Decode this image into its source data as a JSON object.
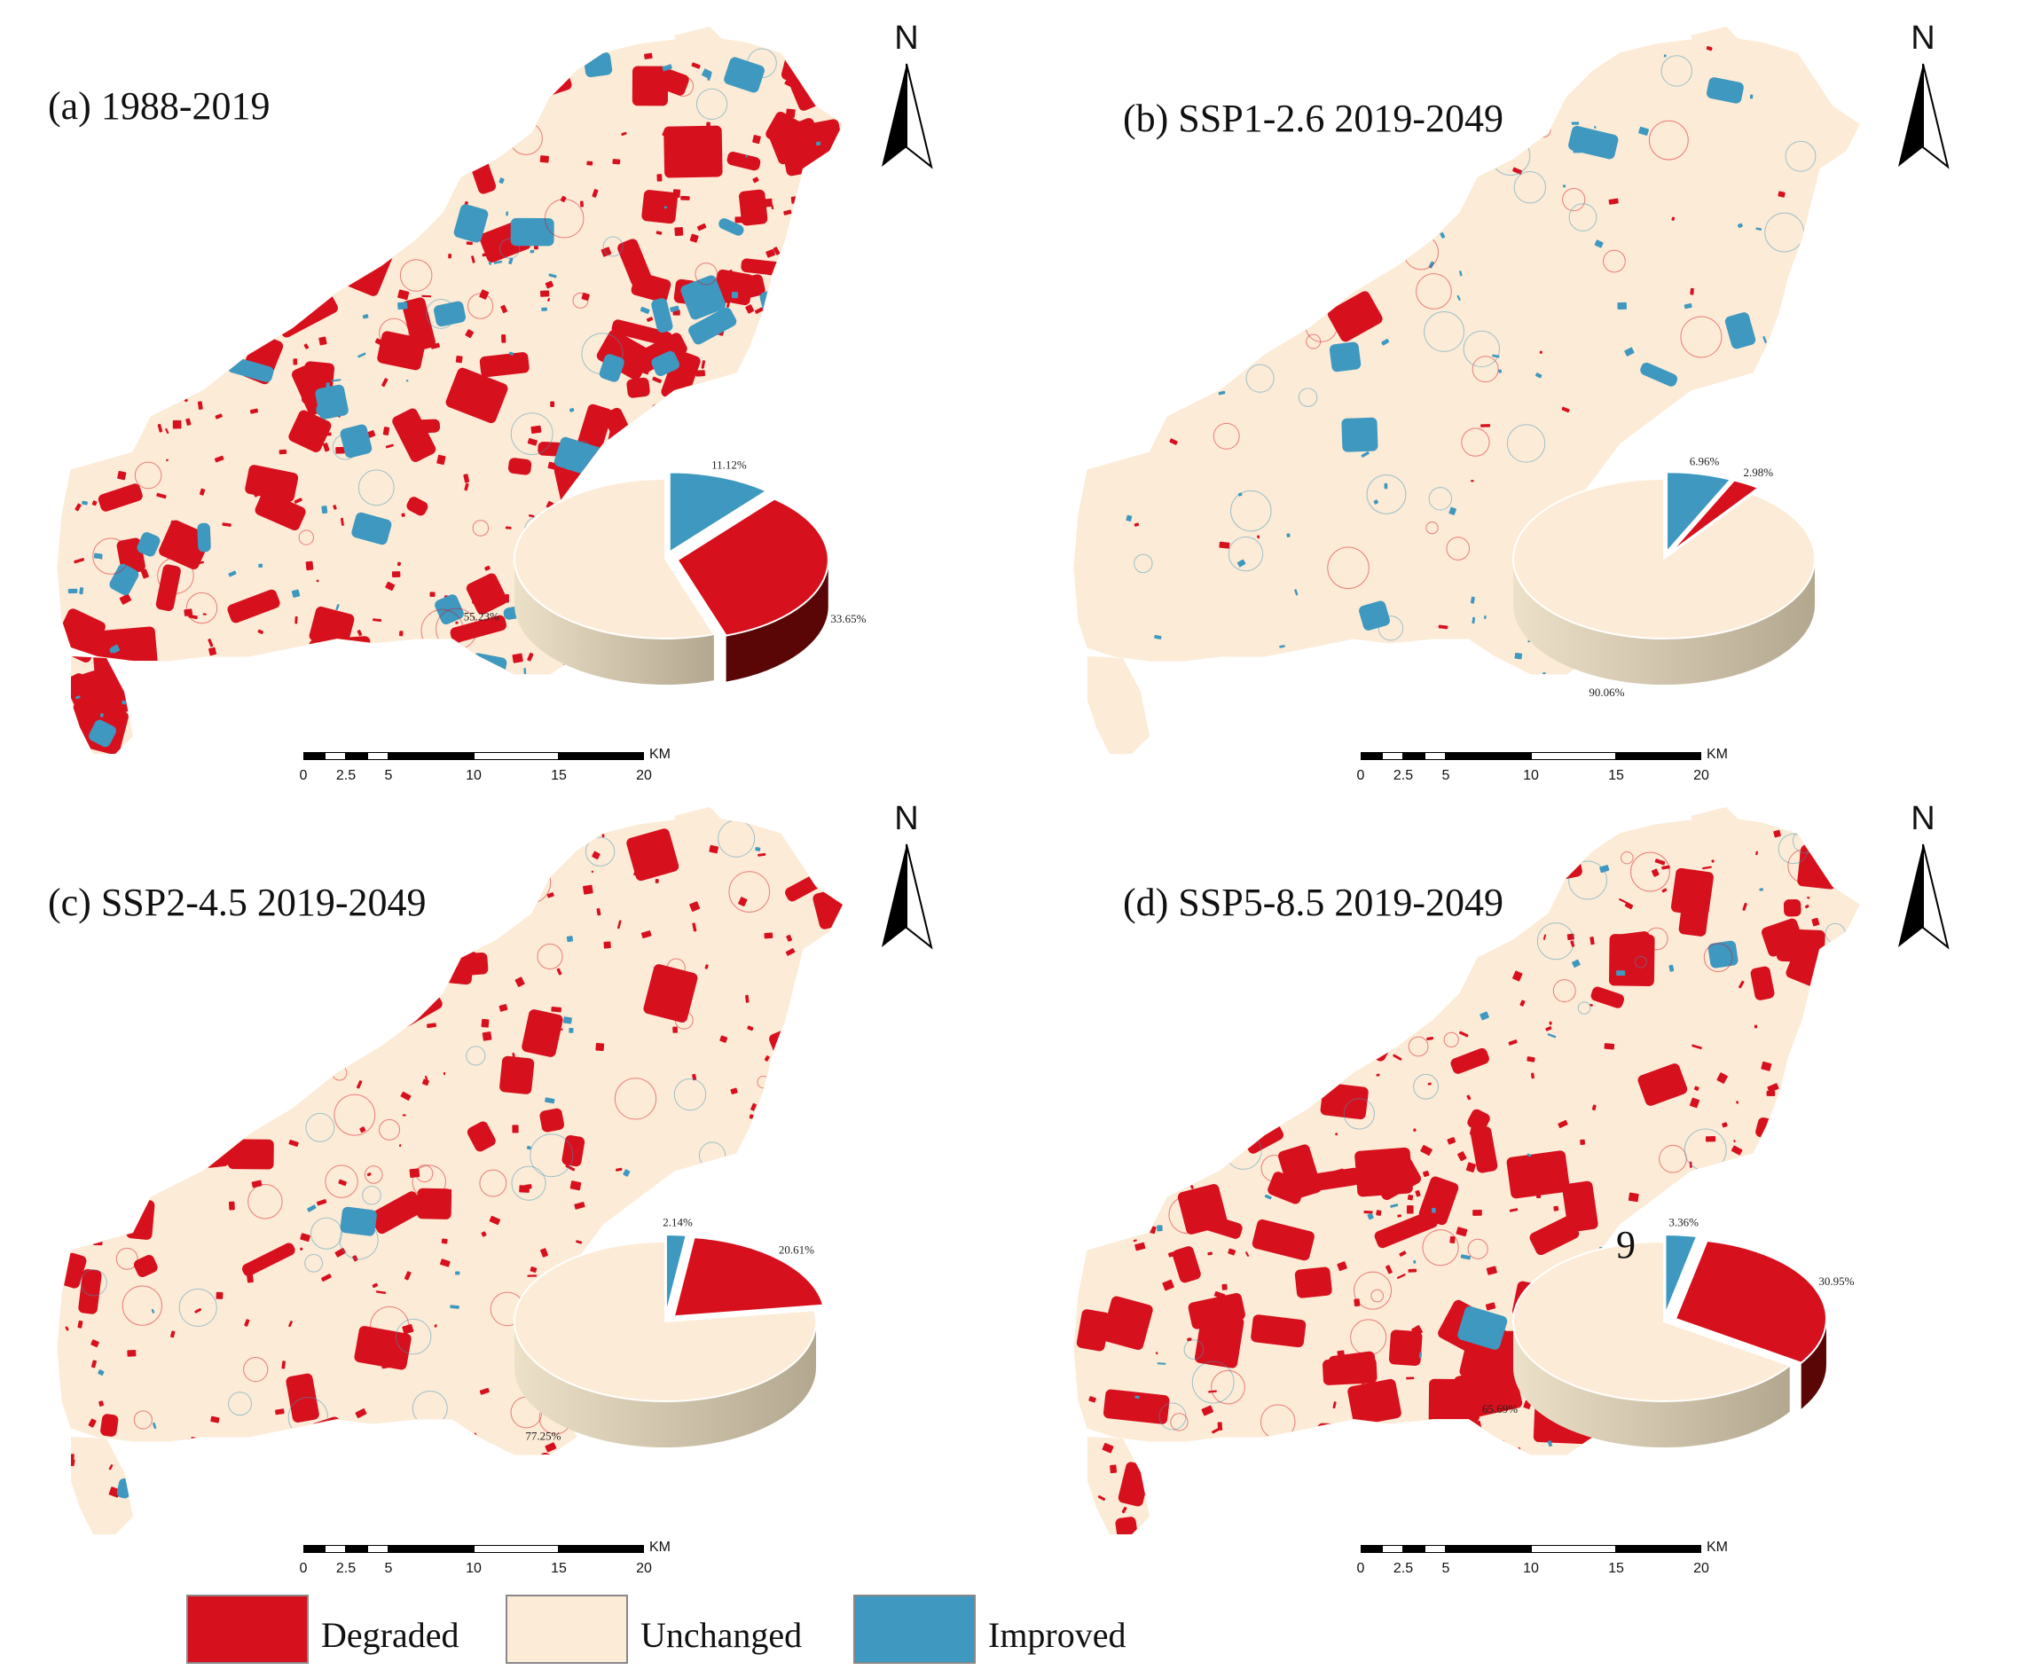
{
  "figure": {
    "colors": {
      "degraded": "#d7101e",
      "unchanged": "#fcebd6",
      "improved": "#3e98c0",
      "degraded_side": "#5a0606",
      "unchanged_side": "#b3a88f",
      "improved_side": "#1d4a5f"
    },
    "compass_label": "N",
    "scale": {
      "unit": "KM",
      "ticks": [
        "0",
        "2.5",
        "5",
        "10",
        "15",
        "20"
      ]
    },
    "stray_label": "9"
  },
  "panels": [
    {
      "id": "a",
      "title": "(a) 1988-2019",
      "chart_data": {
        "type": "pie",
        "title": "(a) 1988-2019",
        "slices": [
          {
            "name": "Improved",
            "value": 11.12,
            "label": "11.12%"
          },
          {
            "name": "Degraded",
            "value": 33.65,
            "label": "33.65%"
          },
          {
            "name": "Unchanged",
            "value": 55.23,
            "label": "55.23%"
          }
        ]
      }
    },
    {
      "id": "b",
      "title": "(b) SSP1-2.6 2019-2049",
      "chart_data": {
        "type": "pie",
        "title": "(b) SSP1-2.6 2019-2049",
        "slices": [
          {
            "name": "Improved",
            "value": 6.96,
            "label": "6.96%"
          },
          {
            "name": "Degraded",
            "value": 2.98,
            "label": "2.98%"
          },
          {
            "name": "Unchanged",
            "value": 90.06,
            "label": "90.06%"
          }
        ]
      }
    },
    {
      "id": "c",
      "title": "(c) SSP2-4.5 2019-2049",
      "chart_data": {
        "type": "pie",
        "title": "(c) SSP2-4.5 2019-2049",
        "slices": [
          {
            "name": "Improved",
            "value": 2.14,
            "label": "2.14%"
          },
          {
            "name": "Degraded",
            "value": 20.61,
            "label": "20.61%"
          },
          {
            "name": "Unchanged",
            "value": 77.25,
            "label": "77.25%"
          }
        ]
      }
    },
    {
      "id": "d",
      "title": "(d) SSP5-8.5 2019-2049",
      "chart_data": {
        "type": "pie",
        "title": "(d) SSP5-8.5 2019-2049",
        "slices": [
          {
            "name": "Improved",
            "value": 3.36,
            "label": "3.36%"
          },
          {
            "name": "Degraded",
            "value": 30.95,
            "label": "30.95%"
          },
          {
            "name": "Unchanged",
            "value": 65.69,
            "label": "65.69%"
          }
        ]
      }
    }
  ],
  "legend": [
    {
      "name": "Degraded",
      "label": "Degraded"
    },
    {
      "name": "Unchanged",
      "label": "Unchanged"
    },
    {
      "name": "Improved",
      "label": "Improved"
    }
  ]
}
